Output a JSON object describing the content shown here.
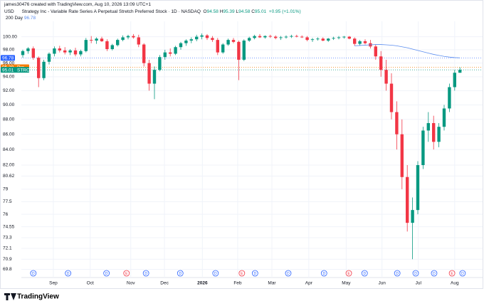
{
  "header": {
    "credit": "james30476 created with TradingView.com, Aug 10, 2026 13:09 UTC+1",
    "currency": "USD",
    "title": "Strategy Inc - Variable Rate Series A Perpetual Stretch Preferred Stock · 1D · NASDAQ",
    "ohlc_legend": [
      {
        "key": "O",
        "value": 94.58
      },
      {
        "key": "H",
        "value": 95.39
      },
      {
        "key": "L",
        "value": 94.58
      },
      {
        "key": "C",
        "value": 95.01
      }
    ],
    "change": "+0.95 (+1.01%)"
  },
  "logo": "TradingView",
  "chart_data": {
    "type": "candlestick",
    "log_scale": true,
    "grid": true,
    "up_color": "#089981",
    "down_color": "#f23645",
    "ylim": [
      69.3,
      102.4
    ],
    "yticks": [
      {
        "value": 100,
        "label": "100.00"
      },
      {
        "value": 98,
        "label": "98.00"
      },
      {
        "value": 96,
        "label": "96.00"
      },
      {
        "value": 94,
        "label": "94.00"
      },
      {
        "value": 92,
        "label": "92.00"
      },
      {
        "value": 90,
        "label": "90.00"
      },
      {
        "value": 88,
        "label": "88.00"
      },
      {
        "value": 86,
        "label": "86.00"
      },
      {
        "value": 84,
        "label": "84.00"
      },
      {
        "value": 82,
        "label": "82.00"
      },
      80.62,
      79,
      77.5,
      76,
      74.55,
      73.3,
      72.1,
      70.9,
      69.8
    ],
    "xticks": [
      {
        "value": 5.8,
        "label": "Sep"
      },
      {
        "value": 12.8,
        "label": "Oct"
      },
      {
        "value": 20.5,
        "label": "Nov"
      },
      {
        "value": 26.9,
        "label": "Dec"
      },
      {
        "value": 34.1,
        "label": "2026"
      },
      {
        "value": 40.8,
        "label": "Feb"
      },
      {
        "value": 47.3,
        "label": "Mar"
      },
      {
        "value": 54.3,
        "label": "Apr"
      },
      {
        "value": 61.4,
        "label": "May"
      },
      {
        "value": 68.2,
        "label": "Jun"
      },
      {
        "value": 75.1,
        "label": "Jul"
      },
      {
        "value": 82,
        "label": "Aug"
      }
    ],
    "ohlc": [
      [
        97.2,
        98.0,
        96.8,
        97.8
      ],
      [
        97.8,
        98.4,
        97.4,
        98.2
      ],
      [
        98.2,
        98.5,
        96.5,
        96.8
      ],
      [
        96.8,
        97.0,
        92.5,
        93.8
      ],
      [
        93.8,
        96.5,
        93.5,
        96.2
      ],
      [
        96.2,
        97.6,
        95.8,
        97.4
      ],
      [
        97.4,
        98.5,
        97.0,
        98.2
      ],
      [
        98.2,
        98.6,
        97.6,
        97.9
      ],
      [
        97.9,
        98.4,
        97.3,
        97.6
      ],
      [
        97.6,
        98.1,
        97.2,
        97.9
      ],
      [
        97.9,
        98.3,
        97.0,
        97.3
      ],
      [
        97.3,
        98.0,
        97.0,
        97.8
      ],
      [
        97.8,
        99.8,
        97.6,
        99.5
      ],
      [
        99.5,
        100.1,
        99.0,
        99.4
      ],
      [
        99.4,
        99.9,
        98.9,
        99.7
      ],
      [
        99.7,
        100.0,
        99.2,
        99.3
      ],
      [
        99.3,
        99.6,
        97.8,
        98.1
      ],
      [
        98.1,
        98.9,
        97.9,
        98.7
      ],
      [
        98.7,
        99.7,
        98.5,
        99.5
      ],
      [
        99.5,
        100.2,
        99.3,
        99.9
      ],
      [
        99.9,
        100.3,
        99.6,
        100.1
      ],
      [
        100.1,
        100.4,
        99.7,
        99.9
      ],
      [
        99.9,
        100.3,
        98.4,
        98.8
      ],
      [
        98.8,
        99.0,
        95.5,
        96.0
      ],
      [
        96.0,
        96.5,
        92.0,
        93.0
      ],
      [
        93.0,
        95.5,
        90.8,
        95.0
      ],
      [
        95.0,
        97.2,
        94.8,
        96.9
      ],
      [
        96.9,
        98.0,
        96.5,
        97.6
      ],
      [
        97.6,
        98.2,
        97.0,
        97.4
      ],
      [
        97.4,
        98.6,
        97.2,
        98.4
      ],
      [
        98.4,
        99.2,
        98.0,
        99.0
      ],
      [
        99.0,
        99.6,
        98.6,
        99.4
      ],
      [
        99.4,
        99.9,
        99.0,
        99.6
      ],
      [
        99.6,
        100.3,
        99.3,
        100.0
      ],
      [
        100.0,
        100.5,
        99.6,
        100.2
      ],
      [
        100.2,
        100.4,
        99.5,
        99.8
      ],
      [
        99.8,
        100.1,
        99.2,
        99.5
      ],
      [
        99.5,
        99.8,
        97.2,
        97.6
      ],
      [
        97.6,
        99.0,
        97.4,
        98.8
      ],
      [
        98.8,
        99.7,
        98.6,
        99.5
      ],
      [
        99.5,
        99.8,
        99.0,
        99.2
      ],
      [
        99.2,
        99.4,
        93.5,
        96.5
      ],
      [
        96.5,
        99.6,
        96.3,
        99.4
      ],
      [
        99.4,
        100.0,
        99.2,
        99.8
      ],
      [
        99.8,
        100.3,
        99.6,
        100.1
      ],
      [
        100.1,
        100.4,
        99.8,
        99.9
      ],
      [
        99.9,
        100.2,
        99.7,
        100.1
      ],
      [
        100.1,
        100.3,
        99.8,
        100.0
      ],
      [
        100.0,
        100.2,
        99.6,
        99.8
      ],
      [
        99.8,
        100.1,
        99.5,
        99.9
      ],
      [
        99.9,
        100.2,
        99.7,
        100.0
      ],
      [
        100.0,
        100.3,
        99.8,
        100.1
      ],
      [
        100.1,
        100.3,
        99.9,
        100.0
      ],
      [
        100.0,
        100.2,
        99.8,
        99.9
      ],
      [
        99.9,
        100.1,
        99.3,
        99.5
      ],
      [
        99.5,
        99.8,
        99.2,
        99.6
      ],
      [
        99.6,
        99.9,
        99.4,
        99.7
      ],
      [
        99.7,
        99.9,
        99.3,
        99.4
      ],
      [
        99.4,
        99.8,
        99.2,
        99.7
      ],
      [
        99.7,
        100.0,
        99.5,
        99.8
      ],
      [
        99.8,
        100.1,
        99.6,
        99.9
      ],
      [
        99.9,
        100.1,
        99.7,
        100.0
      ],
      [
        100.0,
        100.1,
        99.6,
        99.7
      ],
      [
        99.7,
        99.9,
        98.6,
        98.9
      ],
      [
        98.9,
        99.5,
        98.7,
        99.3
      ],
      [
        99.3,
        99.6,
        98.8,
        99.0
      ],
      [
        99.0,
        99.5,
        98.2,
        98.5
      ],
      [
        98.5,
        98.8,
        96.5,
        97.0
      ],
      [
        97.0,
        97.8,
        94.0,
        95.0
      ],
      [
        95.0,
        96.5,
        92.0,
        93.0
      ],
      [
        93.0,
        94.5,
        88.0,
        89.0
      ],
      [
        89.0,
        90.5,
        84.0,
        86.0
      ],
      [
        86.0,
        88.0,
        79.0,
        80.5
      ],
      [
        80.5,
        82.0,
        74.0,
        75.0
      ],
      [
        75.0,
        78.0,
        70.9,
        76.5
      ],
      [
        76.5,
        82.5,
        76.0,
        82.0
      ],
      [
        82.0,
        87.0,
        81.5,
        86.5
      ],
      [
        86.5,
        89.0,
        85.0,
        87.5
      ],
      [
        87.5,
        88.5,
        84.0,
        85.0
      ],
      [
        85.0,
        87.5,
        84.3,
        87.0
      ],
      [
        87.0,
        90.0,
        86.5,
        89.5
      ],
      [
        89.5,
        93.0,
        89.0,
        92.5
      ],
      [
        92.5,
        95.0,
        92.0,
        94.58
      ],
      [
        94.58,
        95.39,
        94.58,
        95.01
      ]
    ],
    "series": [
      {
        "name": "200 Day",
        "color": "#5b8def",
        "value": 96.78,
        "values": [
          null,
          null,
          null,
          null,
          null,
          null,
          null,
          null,
          null,
          null,
          null,
          null,
          null,
          null,
          null,
          null,
          null,
          null,
          null,
          null,
          null,
          null,
          null,
          null,
          null,
          null,
          null,
          null,
          null,
          null,
          null,
          null,
          null,
          null,
          null,
          null,
          null,
          null,
          null,
          null,
          null,
          null,
          null,
          null,
          null,
          null,
          null,
          null,
          null,
          null,
          null,
          null,
          null,
          null,
          null,
          null,
          null,
          null,
          null,
          null,
          null,
          null,
          null,
          98.6,
          98.65,
          98.7,
          98.75,
          98.8,
          98.8,
          98.75,
          98.7,
          98.6,
          98.45,
          98.3,
          98.1,
          97.9,
          97.7,
          97.5,
          97.3,
          97.15,
          97.0,
          96.9,
          96.82,
          96.78
        ]
      }
    ],
    "price_tags": [
      {
        "value": 96.78,
        "color": "#2962ff"
      },
      {
        "value": 95.39,
        "tag": "Pre",
        "color": "#f57c00"
      },
      {
        "value": 95.01,
        "tag": "STRC",
        "color": "#089981"
      }
    ],
    "events": [
      {
        "x": 2.0,
        "label": "D"
      },
      {
        "x": 8.6,
        "label": "D"
      },
      {
        "x": 15.9,
        "label": "D"
      },
      {
        "x": 19.7,
        "label": "E"
      },
      {
        "x": 23.4,
        "label": "D"
      },
      {
        "x": 29.9,
        "label": "D"
      },
      {
        "x": 36.6,
        "label": "D"
      },
      {
        "x": 41.6,
        "label": "E"
      },
      {
        "x": 44.1,
        "label": "D"
      },
      {
        "x": 50.4,
        "label": "D"
      },
      {
        "x": 57.2,
        "label": "D"
      },
      {
        "x": 61.9,
        "label": "E"
      },
      {
        "x": 64.9,
        "label": "D"
      },
      {
        "x": 71.1,
        "label": "D"
      },
      {
        "x": 74.6,
        "label": "D"
      },
      {
        "x": 78.1,
        "label": "D"
      },
      {
        "x": 81.5,
        "label": "E"
      },
      {
        "x": 83.5,
        "label": "D"
      }
    ]
  }
}
